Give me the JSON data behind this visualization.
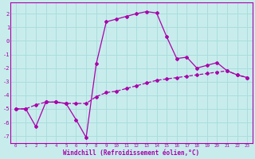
{
  "xlabel": "Windchill (Refroidissement éolien,°C)",
  "background_color": "#c8ecec",
  "grid_color": "#aadddd",
  "line_color": "#aa00aa",
  "xlim": [
    -0.5,
    23.5
  ],
  "ylim": [
    -7.5,
    2.8
  ],
  "yticks": [
    -7,
    -6,
    -5,
    -4,
    -3,
    -2,
    -1,
    0,
    1,
    2
  ],
  "xticks": [
    0,
    1,
    2,
    3,
    4,
    5,
    6,
    7,
    8,
    9,
    10,
    11,
    12,
    13,
    14,
    15,
    16,
    17,
    18,
    19,
    20,
    21,
    22,
    23
  ],
  "series1_x": [
    0,
    1,
    2,
    3,
    4,
    5,
    6,
    7,
    8,
    9,
    10,
    11,
    12,
    13,
    14,
    15,
    16,
    17,
    18,
    19,
    20,
    21,
    22,
    23
  ],
  "series1_y": [
    -5.0,
    -5.0,
    -4.7,
    -4.5,
    -4.5,
    -4.6,
    -4.6,
    -4.6,
    -4.1,
    -3.8,
    -3.7,
    -3.5,
    -3.3,
    -3.1,
    -2.9,
    -2.8,
    -2.7,
    -2.6,
    -2.5,
    -2.4,
    -2.3,
    -2.2,
    -2.5,
    -2.7
  ],
  "series2_x": [
    0,
    1,
    2,
    3,
    4,
    5,
    6,
    7,
    8,
    9,
    10,
    11,
    12,
    13,
    14,
    15,
    16,
    17,
    18,
    19,
    20,
    21,
    22,
    23
  ],
  "series2_y": [
    -5.0,
    -5.0,
    -6.3,
    -4.5,
    -4.5,
    -4.6,
    -5.8,
    -7.1,
    -1.7,
    1.4,
    1.6,
    1.8,
    2.0,
    2.15,
    2.05,
    0.3,
    -1.3,
    -1.2,
    -2.0,
    -1.8,
    -1.6,
    -2.2,
    -2.5,
    -2.7
  ]
}
